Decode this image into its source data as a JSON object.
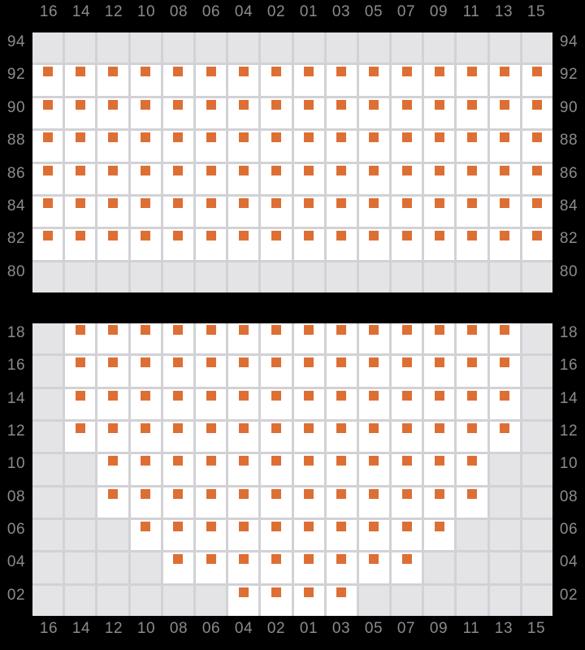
{
  "colors": {
    "background": "#000000",
    "grid_line": "#d2d1d5",
    "cell_empty": "#e4e3e6",
    "cell_available": "#ffffff",
    "seat_marker": "#dd6f35",
    "label_text": "#8b8b8f"
  },
  "column_labels": [
    "16",
    "14",
    "12",
    "10",
    "08",
    "06",
    "04",
    "02",
    "01",
    "03",
    "05",
    "07",
    "09",
    "11",
    "13",
    "15"
  ],
  "blocks": [
    {
      "name": "upper",
      "rows": [
        {
          "label": "94",
          "seats": [
            0,
            0,
            0,
            0,
            0,
            0,
            0,
            0,
            0,
            0,
            0,
            0,
            0,
            0,
            0,
            0
          ]
        },
        {
          "label": "92",
          "seats": [
            1,
            1,
            1,
            1,
            1,
            1,
            1,
            1,
            1,
            1,
            1,
            1,
            1,
            1,
            1,
            1
          ]
        },
        {
          "label": "90",
          "seats": [
            1,
            1,
            1,
            1,
            1,
            1,
            1,
            1,
            1,
            1,
            1,
            1,
            1,
            1,
            1,
            1
          ]
        },
        {
          "label": "88",
          "seats": [
            1,
            1,
            1,
            1,
            1,
            1,
            1,
            1,
            1,
            1,
            1,
            1,
            1,
            1,
            1,
            1
          ]
        },
        {
          "label": "86",
          "seats": [
            1,
            1,
            1,
            1,
            1,
            1,
            1,
            1,
            1,
            1,
            1,
            1,
            1,
            1,
            1,
            1
          ]
        },
        {
          "label": "84",
          "seats": [
            1,
            1,
            1,
            1,
            1,
            1,
            1,
            1,
            1,
            1,
            1,
            1,
            1,
            1,
            1,
            1
          ]
        },
        {
          "label": "82",
          "seats": [
            1,
            1,
            1,
            1,
            1,
            1,
            1,
            1,
            1,
            1,
            1,
            1,
            1,
            1,
            1,
            1
          ]
        },
        {
          "label": "80",
          "seats": [
            0,
            0,
            0,
            0,
            0,
            0,
            0,
            0,
            0,
            0,
            0,
            0,
            0,
            0,
            0,
            0
          ]
        }
      ]
    },
    {
      "name": "lower",
      "rows": [
        {
          "label": "18",
          "seats": [
            0,
            1,
            1,
            1,
            1,
            1,
            1,
            1,
            1,
            1,
            1,
            1,
            1,
            1,
            1,
            0
          ]
        },
        {
          "label": "16",
          "seats": [
            0,
            1,
            1,
            1,
            1,
            1,
            1,
            1,
            1,
            1,
            1,
            1,
            1,
            1,
            1,
            0
          ]
        },
        {
          "label": "14",
          "seats": [
            0,
            1,
            1,
            1,
            1,
            1,
            1,
            1,
            1,
            1,
            1,
            1,
            1,
            1,
            1,
            0
          ]
        },
        {
          "label": "12",
          "seats": [
            0,
            1,
            1,
            1,
            1,
            1,
            1,
            1,
            1,
            1,
            1,
            1,
            1,
            1,
            1,
            0
          ]
        },
        {
          "label": "10",
          "seats": [
            0,
            0,
            1,
            1,
            1,
            1,
            1,
            1,
            1,
            1,
            1,
            1,
            1,
            1,
            0,
            0
          ]
        },
        {
          "label": "08",
          "seats": [
            0,
            0,
            1,
            1,
            1,
            1,
            1,
            1,
            1,
            1,
            1,
            1,
            1,
            1,
            0,
            0
          ]
        },
        {
          "label": "06",
          "seats": [
            0,
            0,
            0,
            1,
            1,
            1,
            1,
            1,
            1,
            1,
            1,
            1,
            1,
            0,
            0,
            0
          ]
        },
        {
          "label": "04",
          "seats": [
            0,
            0,
            0,
            0,
            1,
            1,
            1,
            1,
            1,
            1,
            1,
            1,
            0,
            0,
            0,
            0
          ]
        },
        {
          "label": "02",
          "seats": [
            0,
            0,
            0,
            0,
            0,
            0,
            1,
            1,
            1,
            1,
            0,
            0,
            0,
            0,
            0,
            0
          ]
        }
      ]
    }
  ]
}
